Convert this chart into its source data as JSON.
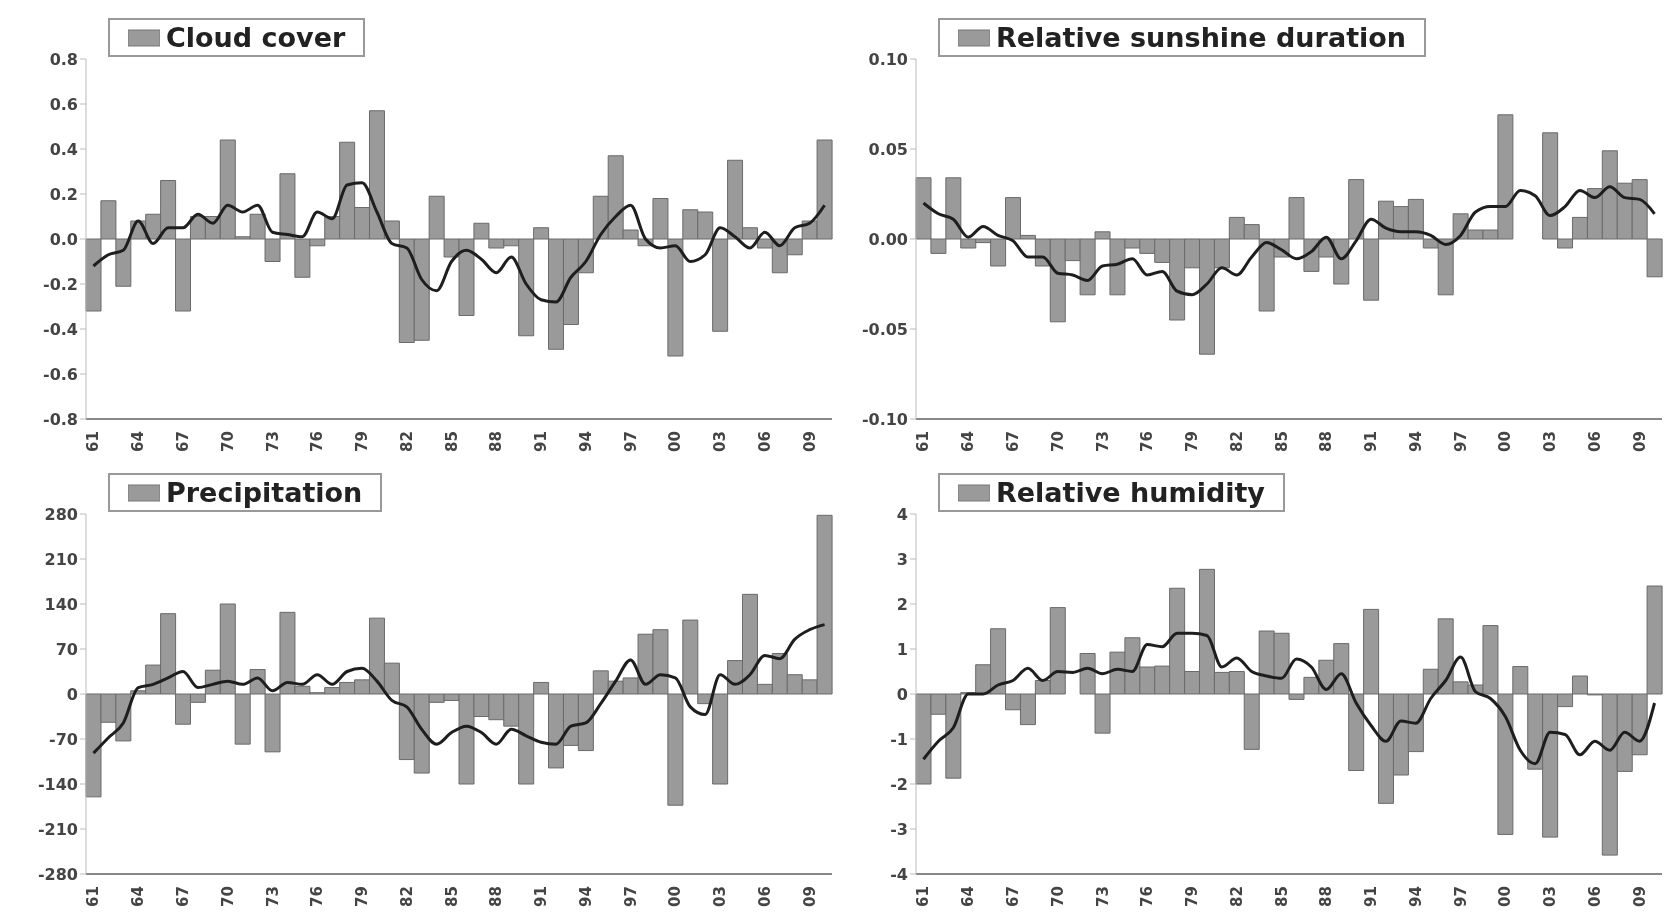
{
  "chart_data": [
    {
      "type": "bar",
      "legend": "top left",
      "categories": [
        "61",
        null,
        null,
        "64",
        null,
        null,
        "67",
        null,
        null,
        "70",
        null,
        null,
        "73",
        null,
        null,
        "76",
        null,
        null,
        "79",
        null,
        null,
        "82",
        null,
        null,
        "85",
        null,
        null,
        "88",
        null,
        null,
        "91",
        null,
        null,
        "94",
        null,
        null,
        "97",
        null,
        null,
        "00",
        null,
        null,
        "03",
        null,
        null,
        "06",
        null,
        null,
        "09",
        null
      ],
      "ylim": [
        -0.8,
        0.8
      ],
      "yticks": [
        -0.8,
        -0.6,
        -0.4,
        -0.2,
        {
          "value": 0,
          "label": "0.0"
        },
        0.2,
        0.4,
        0.6,
        0.8
      ],
      "series": [
        {
          "name": "Cloud cover",
          "color": "#9a9a9a",
          "values": [
            -0.32,
            0.17,
            -0.21,
            0.08,
            0.11,
            0.26,
            -0.32,
            0.1,
            0.1,
            0.44,
            0.01,
            0.11,
            -0.1,
            0.29,
            -0.17,
            -0.03,
            0.1,
            0.43,
            0.14,
            0.57,
            0.08,
            -0.46,
            -0.45,
            0.19,
            -0.08,
            -0.34,
            0.07,
            -0.04,
            -0.03,
            -0.43,
            0.05,
            -0.49,
            -0.38,
            -0.15,
            0.19,
            0.37,
            0.04,
            -0.03,
            0.18,
            -0.52,
            0.13,
            0.12,
            -0.41,
            0.35,
            0.05,
            -0.04,
            -0.15,
            -0.07,
            0.08,
            0.44
          ]
        },
        {
          "type": "line",
          "color": "#1e1e1e",
          "values": [
            -0.12,
            -0.07,
            -0.05,
            0.08,
            -0.02,
            0.05,
            0.05,
            0.11,
            0.07,
            0.15,
            0.12,
            0.15,
            0.03,
            0.02,
            0.01,
            0.12,
            0.09,
            0.24,
            0.25,
            0.12,
            -0.02,
            -0.04,
            -0.18,
            -0.23,
            -0.1,
            -0.05,
            -0.09,
            -0.15,
            -0.08,
            -0.2,
            -0.27,
            -0.28,
            -0.17,
            -0.1,
            0.02,
            0.1,
            0.15,
            0.0,
            -0.04,
            -0.03,
            -0.1,
            -0.07,
            0.05,
            0.01,
            -0.04,
            0.03,
            -0.03,
            0.05,
            0.07,
            0.15
          ]
        }
      ]
    },
    {
      "type": "bar",
      "legend": "top left",
      "categories": [
        "61",
        null,
        null,
        "64",
        null,
        null,
        "67",
        null,
        null,
        "70",
        null,
        null,
        "73",
        null,
        null,
        "76",
        null,
        null,
        "79",
        null,
        null,
        "82",
        null,
        null,
        "85",
        null,
        null,
        "88",
        null,
        null,
        "91",
        null,
        null,
        "94",
        null,
        null,
        "97",
        null,
        null,
        "00",
        null,
        null,
        "03",
        null,
        null,
        "06",
        null,
        null,
        "09",
        null
      ],
      "ylim": [
        -0.1,
        0.1
      ],
      "yticks": [
        {
          "value": -0.1,
          "label": "-0.10"
        },
        {
          "value": -0.05,
          "label": "-0.05"
        },
        {
          "value": 0,
          "label": "0.00"
        },
        {
          "value": 0.05,
          "label": "0.05"
        },
        {
          "value": 0.1,
          "label": "0.10"
        }
      ],
      "series": [
        {
          "name": "Relative sunshine duration",
          "color": "#9a9a9a",
          "values": [
            0.034,
            -0.008,
            0.034,
            -0.005,
            -0.002,
            -0.015,
            0.023,
            0.002,
            -0.015,
            -0.046,
            -0.012,
            -0.031,
            0.004,
            -0.031,
            -0.005,
            -0.008,
            -0.013,
            -0.045,
            -0.016,
            -0.064,
            -0.016,
            0.012,
            0.008,
            -0.04,
            -0.01,
            0.023,
            -0.018,
            -0.01,
            -0.025,
            0.033,
            -0.034,
            0.021,
            0.018,
            0.022,
            -0.005,
            -0.031,
            0.014,
            0.005,
            0.005,
            0.069,
            0,
            0,
            0.059,
            -0.005,
            0.012,
            0.028,
            0.049,
            0.031,
            0.033,
            -0.021
          ]
        },
        {
          "type": "line",
          "color": "#1e1e1e",
          "values": [
            0.02,
            0.014,
            0.011,
            0.001,
            0.007,
            0.002,
            -0.001,
            -0.01,
            -0.01,
            -0.019,
            -0.02,
            -0.023,
            -0.015,
            -0.014,
            -0.011,
            -0.02,
            -0.018,
            -0.029,
            -0.031,
            -0.025,
            -0.016,
            -0.02,
            -0.01,
            -0.002,
            -0.006,
            -0.011,
            -0.007,
            0.001,
            -0.011,
            -0.001,
            0.011,
            0.006,
            0.004,
            0.004,
            0.002,
            -0.003,
            0.002,
            0.015,
            0.018,
            0.018,
            0.027,
            0.024,
            0.013,
            0.018,
            0.027,
            0.023,
            0.029,
            0.023,
            0.022,
            0.014
          ]
        }
      ]
    },
    {
      "type": "bar",
      "legend": "top left",
      "categories": [
        "61",
        null,
        null,
        "64",
        null,
        null,
        "67",
        null,
        null,
        "70",
        null,
        null,
        "73",
        null,
        null,
        "76",
        null,
        null,
        "79",
        null,
        null,
        "82",
        null,
        null,
        "85",
        null,
        null,
        "88",
        null,
        null,
        "91",
        null,
        null,
        "94",
        null,
        null,
        "97",
        null,
        null,
        "00",
        null,
        null,
        "03",
        null,
        null,
        "06",
        null,
        null,
        "09",
        null
      ],
      "ylim": [
        -280,
        280
      ],
      "yticks": [
        -280,
        -210,
        -140,
        -70,
        0,
        70,
        140,
        210,
        280
      ],
      "series": [
        {
          "name": "Precipitation",
          "color": "#9a9a9a",
          "values": [
            -160,
            -44,
            -73,
            5,
            45,
            125,
            -47,
            -13,
            37,
            140,
            -78,
            38,
            -90,
            127,
            12,
            2,
            10,
            18,
            22,
            118,
            48,
            -102,
            -123,
            -13,
            -10,
            -140,
            -35,
            -40,
            -50,
            -140,
            18,
            -115,
            -80,
            -88,
            36,
            20,
            25,
            93,
            100,
            -173,
            115,
            -15,
            -140,
            52,
            155,
            15,
            63,
            30,
            22,
            278
          ]
        },
        {
          "type": "line",
          "color": "#1e1e1e",
          "values": [
            -92,
            -68,
            -45,
            10,
            15,
            25,
            35,
            10,
            15,
            20,
            15,
            25,
            5,
            18,
            15,
            30,
            15,
            35,
            40,
            20,
            -10,
            -20,
            -55,
            -78,
            -60,
            -50,
            -60,
            -78,
            -55,
            -65,
            -75,
            -78,
            -50,
            -45,
            -15,
            20,
            53,
            15,
            30,
            25,
            -20,
            -32,
            30,
            15,
            30,
            60,
            55,
            85,
            100,
            108
          ]
        }
      ]
    },
    {
      "type": "bar",
      "legend": "top left",
      "categories": [
        "61",
        null,
        null,
        "64",
        null,
        null,
        "67",
        null,
        null,
        "70",
        null,
        null,
        "73",
        null,
        null,
        "76",
        null,
        null,
        "79",
        null,
        null,
        "82",
        null,
        null,
        "85",
        null,
        null,
        "88",
        null,
        null,
        "91",
        null,
        null,
        "94",
        null,
        null,
        "97",
        null,
        null,
        "00",
        null,
        null,
        "03",
        null,
        null,
        "06",
        null,
        null,
        "09",
        null
      ],
      "ylim": [
        -4,
        4
      ],
      "yticks": [
        -4,
        -3,
        -2,
        -1,
        0,
        1,
        2,
        3,
        4
      ],
      "series": [
        {
          "name": "Relative humidity",
          "color": "#9a9a9a",
          "values": [
            -2.0,
            -0.45,
            -1.87,
            0.03,
            0.65,
            1.45,
            -0.35,
            -0.68,
            0.3,
            1.92,
            0,
            0.9,
            -0.87,
            0.93,
            1.25,
            0.6,
            0.62,
            2.35,
            0.5,
            2.77,
            0.48,
            0.5,
            -1.23,
            1.4,
            1.35,
            -0.12,
            0.37,
            0.75,
            1.12,
            -1.7,
            1.88,
            -2.43,
            -1.8,
            -1.28,
            0.55,
            1.67,
            0.27,
            0.2,
            1.52,
            -3.12,
            0.61,
            -1.67,
            -3.18,
            -0.28,
            0.4,
            -0.02,
            -3.58,
            -1.72,
            -1.35,
            2.4
          ]
        },
        {
          "type": "line",
          "color": "#1e1e1e",
          "values": [
            -1.45,
            -1.05,
            -0.75,
            0.0,
            0.0,
            0.2,
            0.3,
            0.57,
            0.3,
            0.5,
            0.48,
            0.57,
            0.45,
            0.55,
            0.5,
            1.1,
            1.05,
            1.35,
            1.35,
            1.3,
            0.6,
            0.8,
            0.5,
            0.4,
            0.35,
            0.78,
            0.6,
            0.1,
            0.45,
            -0.2,
            -0.7,
            -1.05,
            -0.6,
            -0.65,
            -0.1,
            0.3,
            0.82,
            0.05,
            -0.1,
            -0.5,
            -1.25,
            -1.55,
            -0.85,
            -0.9,
            -1.35,
            -1.05,
            -1.25,
            -0.85,
            -1.05,
            -0.2
          ]
        }
      ]
    }
  ]
}
